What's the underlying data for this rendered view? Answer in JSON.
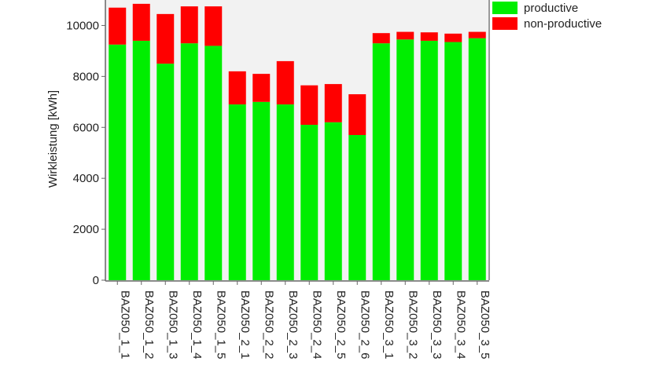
{
  "chart_data": {
    "type": "bar",
    "stacked": true,
    "ylabel": "Wirkleistung [kWh]",
    "xlabel": "",
    "ylim": [
      0,
      11000
    ],
    "yticks": [
      0,
      2000,
      4000,
      6000,
      8000,
      10000
    ],
    "grid": false,
    "legend": "top-right",
    "categories": [
      "BAZ050_1_1",
      "BAZ050_1_2",
      "BAZ050_1_3",
      "BAZ050_1_4",
      "BAZ050_1_5",
      "BAZ050_2_1",
      "BAZ050_2_2",
      "BAZ050_2_3",
      "BAZ050_2_4",
      "BAZ050_2_5",
      "BAZ050_2_6",
      "BAZ050_3_1",
      "BAZ050_3_2",
      "BAZ050_3_3",
      "BAZ050_3_4",
      "BAZ050_3_5"
    ],
    "series": [
      {
        "name": "productive",
        "color": "#00ee00",
        "values": [
          9250,
          9400,
          8500,
          9300,
          9200,
          6900,
          7000,
          6900,
          6100,
          6200,
          5700,
          9300,
          9450,
          9400,
          9350,
          9500
        ]
      },
      {
        "name": "non-productive",
        "color": "#ff0000",
        "values": [
          1450,
          1450,
          1950,
          1450,
          1550,
          1300,
          1100,
          1700,
          1550,
          1500,
          1600,
          400,
          300,
          330,
          330,
          250
        ]
      }
    ]
  }
}
